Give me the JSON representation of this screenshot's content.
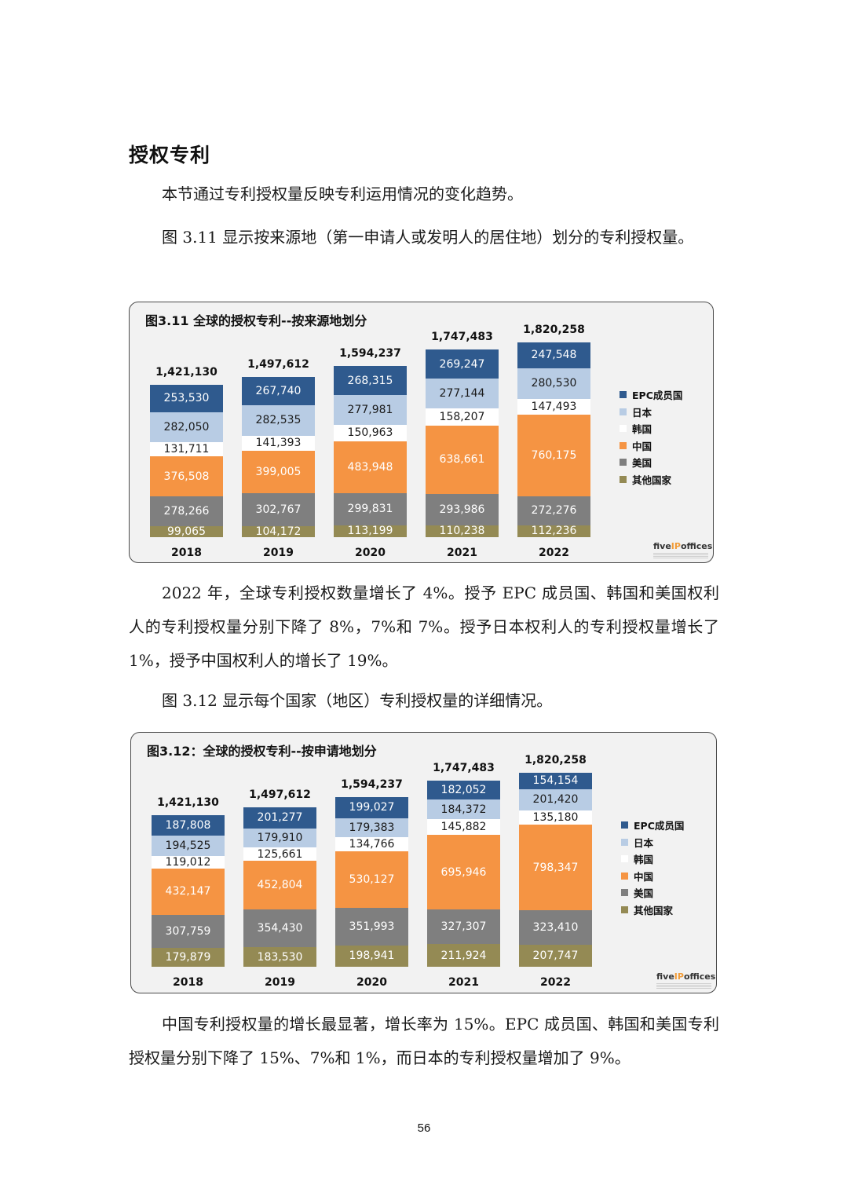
{
  "document": {
    "heading": "授权专利",
    "paragraphs": [
      "本节通过专利授权量反映专利运用情况的变化趋势。",
      "图 3.11 显示按来源地（第一申请人或发明人的居住地）划分的专利授权量。",
      "2022 年，全球专利授权数量增长了 4%。授予 EPC 成员国、韩国和美国权利人的专利授权量分别下降了 8%，7%和 7%。授予日本权利人的专利授权量增长了 1%，授予中国权利人的增长了 19%。",
      "图 3.12 显示每个国家（地区）专利授权量的详细情况。",
      "中国专利授权量的增长最显著，增长率为 15%。EPC 成员国、韩国和美国专利授权量分别下降了 15%、7%和 1%，而日本的专利授权量增加了 9%。"
    ],
    "page_number": "56"
  },
  "legend": [
    {
      "label": "EPC成员国",
      "color": "#2f5a8e",
      "text_color": "#ffffff"
    },
    {
      "label": "日本",
      "color": "#b8cce4",
      "text_color": "#1a1a1a"
    },
    {
      "label": "韩国",
      "color": "#ffffff",
      "text_color": "#1a1a1a"
    },
    {
      "label": "中国",
      "color": "#f59443",
      "text_color": "#ffffff"
    },
    {
      "label": "美国",
      "color": "#7f7f7f",
      "text_color": "#ffffff"
    },
    {
      "label": "其他国家",
      "color": "#948a54",
      "text_color": "#ffffff"
    }
  ],
  "logo": {
    "prefix": "five",
    "ip": "IP",
    "suffix": "offices"
  },
  "chart_data": [
    {
      "type": "bar",
      "stacked": true,
      "title": "图3.11 全球的授权专利--按来源地划分",
      "categories": [
        "2018",
        "2019",
        "2020",
        "2021",
        "2022"
      ],
      "totals": [
        "1,421,130",
        "1,497,612",
        "1,594,237",
        "1,747,483",
        "1,820,258"
      ],
      "series": [
        {
          "name": "EPC成员国",
          "values": [
            253530,
            267740,
            268315,
            269247,
            247548
          ]
        },
        {
          "name": "日本",
          "values": [
            282050,
            282535,
            277981,
            277144,
            280530
          ]
        },
        {
          "name": "韩国",
          "values": [
            131711,
            141393,
            150963,
            158207,
            147493
          ]
        },
        {
          "name": "中国",
          "values": [
            376508,
            399005,
            483948,
            638661,
            760175
          ]
        },
        {
          "name": "美国",
          "values": [
            278266,
            302767,
            299831,
            293986,
            272276
          ]
        },
        {
          "name": "其他国家",
          "values": [
            99065,
            104172,
            113199,
            110238,
            112236
          ]
        }
      ],
      "xlabel": "",
      "ylabel": "",
      "grid": false,
      "legend_position": "right"
    },
    {
      "type": "bar",
      "stacked": true,
      "title": "图3.12：全球的授权专利--按申请地划分",
      "categories": [
        "2018",
        "2019",
        "2020",
        "2021",
        "2022"
      ],
      "totals": [
        "1,421,130",
        "1,497,612",
        "1,594,237",
        "1,747,483",
        "1,820,258"
      ],
      "series": [
        {
          "name": "EPC成员国",
          "values": [
            187808,
            201277,
            199027,
            182052,
            154154
          ]
        },
        {
          "name": "日本",
          "values": [
            194525,
            179910,
            179383,
            184372,
            201420
          ]
        },
        {
          "name": "韩国",
          "values": [
            119012,
            125661,
            134766,
            145882,
            135180
          ]
        },
        {
          "name": "中国",
          "values": [
            432147,
            452804,
            530127,
            695946,
            798347
          ]
        },
        {
          "name": "美国",
          "values": [
            307759,
            354430,
            351993,
            327307,
            323410
          ]
        },
        {
          "name": "其他国家",
          "values": [
            179879,
            183530,
            198941,
            211924,
            207747
          ]
        }
      ],
      "xlabel": "",
      "ylabel": "",
      "grid": false,
      "legend_position": "right"
    }
  ]
}
